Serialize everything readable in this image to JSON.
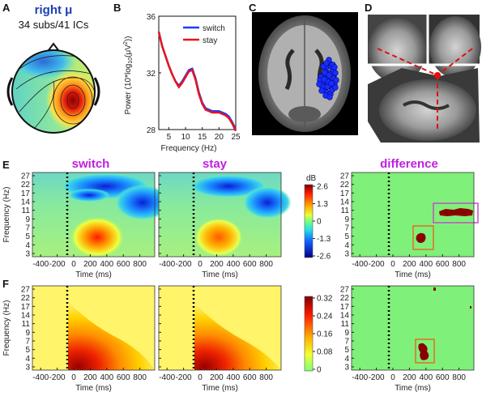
{
  "panels": {
    "a": "A",
    "b": "B",
    "c": "C",
    "d": "D",
    "e": "E",
    "f": "F"
  },
  "panel_a": {
    "title": "right μ",
    "subtitle": "34 subs/41 ICs",
    "title_color": "#1a3fb3"
  },
  "panel_b": {
    "ylabel": "Power (10*log",
    "ylabel_sub": "10",
    "ylabel_tail": "(μV",
    "ylabel_sup": "2",
    "ylabel_end": "))",
    "xlabel": "Frequency (Hz)",
    "chart_data": {
      "type": "line",
      "xlabel": "Frequency (Hz)",
      "ylabel": "Power (10*log10(μV²))",
      "xlim": [
        2,
        25
      ],
      "ylim": [
        28,
        36
      ],
      "xticks": [
        "5",
        "10",
        "15",
        "20",
        "25"
      ],
      "yticks": [
        "28",
        "32",
        "36"
      ],
      "legend_position": "top-right",
      "x": [
        2,
        3,
        4,
        5,
        6,
        7,
        8,
        9,
        10,
        11,
        12,
        13,
        14,
        15,
        16,
        17,
        18,
        19,
        20,
        21,
        22,
        23,
        24,
        25
      ],
      "series": [
        {
          "name": "switch",
          "color": "#1f3cff",
          "values": [
            34.9,
            33.9,
            33.2,
            32.5,
            31.9,
            31.4,
            31.1,
            31.4,
            31.8,
            32.2,
            32.3,
            31.6,
            30.6,
            29.9,
            29.5,
            29.4,
            29.3,
            29.3,
            29.3,
            29.2,
            29.1,
            28.9,
            28.5,
            28.0
          ]
        },
        {
          "name": "stay",
          "color": "#e8141c",
          "values": [
            34.9,
            33.9,
            33.2,
            32.5,
            31.9,
            31.4,
            31.0,
            31.3,
            31.7,
            32.1,
            32.2,
            31.5,
            30.5,
            29.8,
            29.4,
            29.3,
            29.2,
            29.2,
            29.2,
            29.1,
            29.0,
            28.8,
            28.4,
            27.9
          ]
        }
      ]
    }
  },
  "panel_e": {
    "titles": [
      "switch",
      "stay",
      "difference"
    ],
    "title_color": "#c01fe0",
    "ylabel": "Frequency (Hz)",
    "xlabel": "Time (ms)",
    "yticks": [
      "27",
      "22",
      "17",
      "14",
      "11",
      "9",
      "7",
      "5",
      "4",
      "3"
    ],
    "xticks": [
      "-400",
      "-200",
      "0",
      "200",
      "400",
      "600",
      "800"
    ],
    "colorbar_unit": "dB",
    "colorbar_ticks": [
      "2.6",
      "1.3",
      "0",
      "-1.3",
      "-2.6"
    ],
    "colorbar_range": [
      -2.6,
      2.6
    ]
  },
  "panel_f": {
    "ylabel": "Frequency (Hz)",
    "xlabel": "Time (ms)",
    "yticks": [
      "27",
      "22",
      "17",
      "14",
      "11",
      "9",
      "7",
      "5",
      "4",
      "3"
    ],
    "xticks": [
      "-400",
      "-200",
      "0",
      "200",
      "400",
      "600",
      "800"
    ],
    "colorbar_ticks": [
      "0.32",
      "0.24",
      "0.16",
      "0.08",
      "0"
    ],
    "colorbar_range": [
      0,
      0.32
    ]
  }
}
